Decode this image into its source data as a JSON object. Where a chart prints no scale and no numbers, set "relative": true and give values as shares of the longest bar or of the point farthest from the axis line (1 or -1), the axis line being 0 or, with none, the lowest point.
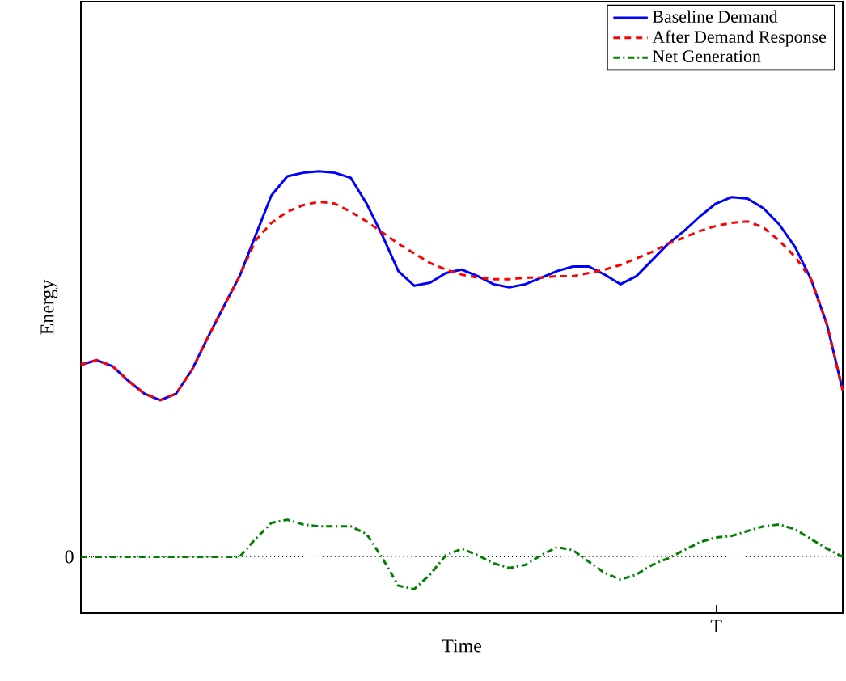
{
  "chart_data": {
    "type": "line",
    "relative": true,
    "xlabel": "Time",
    "ylabel": "Energy",
    "categories": [
      null,
      null,
      null,
      null,
      null,
      null,
      null,
      null,
      null,
      null,
      null,
      null,
      null,
      null,
      null,
      null,
      null,
      null,
      null,
      null,
      null,
      null,
      null,
      null,
      null,
      null,
      null,
      null,
      null,
      null,
      null,
      null,
      null,
      null,
      null,
      null,
      null,
      null,
      null,
      null,
      null,
      null,
      null,
      null,
      null,
      null,
      null,
      null,
      null
    ],
    "annotations": [
      "T"
    ],
    "legend": "top right",
    "ref_lines": [
      {
        "axis": "y",
        "value": 0,
        "label": "0",
        "color": "#000000",
        "line_style": "dotted"
      }
    ],
    "series": [
      {
        "name": "Baseline Demand",
        "color": "#0000ff",
        "line_style": "solid",
        "values": [
          0.498,
          0.51,
          0.494,
          0.456,
          0.423,
          0.406,
          0.423,
          0.485,
          0.569,
          0.649,
          0.728,
          0.833,
          0.937,
          0.987,
          0.996,
          1.0,
          0.996,
          0.983,
          0.916,
          0.833,
          0.741,
          0.703,
          0.711,
          0.736,
          0.745,
          0.728,
          0.707,
          0.699,
          0.707,
          0.724,
          0.741,
          0.753,
          0.753,
          0.732,
          0.707,
          0.728,
          0.77,
          0.812,
          0.845,
          0.883,
          0.916,
          0.933,
          0.929,
          0.904,
          0.862,
          0.803,
          0.72,
          0.603,
          0.431
        ]
      },
      {
        "name": "After Demand Response",
        "color": "#ff0000",
        "line_style": "dashed",
        "values": [
          0.498,
          0.51,
          0.494,
          0.456,
          0.423,
          0.406,
          0.423,
          0.485,
          0.569,
          0.649,
          0.728,
          0.82,
          0.866,
          0.895,
          0.912,
          0.921,
          0.916,
          0.895,
          0.87,
          0.841,
          0.812,
          0.787,
          0.762,
          0.745,
          0.732,
          0.724,
          0.72,
          0.72,
          0.724,
          0.724,
          0.728,
          0.728,
          0.736,
          0.745,
          0.757,
          0.774,
          0.791,
          0.812,
          0.828,
          0.845,
          0.858,
          0.866,
          0.87,
          0.854,
          0.82,
          0.778,
          0.72,
          0.603,
          0.431
        ]
      },
      {
        "name": "Net Generation",
        "color": "#008000",
        "line_style": "dashdot",
        "values": [
          0,
          0,
          0,
          0,
          0,
          0,
          0,
          0,
          0,
          0,
          0,
          0.046,
          0.088,
          0.096,
          0.084,
          0.079,
          0.079,
          0.079,
          0.059,
          -0.004,
          -0.075,
          -0.084,
          -0.046,
          0.004,
          0.021,
          0.004,
          -0.017,
          -0.029,
          -0.021,
          0.004,
          0.025,
          0.017,
          -0.013,
          -0.042,
          -0.059,
          -0.046,
          -0.021,
          -0.004,
          0.017,
          0.038,
          0.05,
          0.054,
          0.067,
          0.079,
          0.084,
          0.071,
          0.046,
          0.021,
          0
        ]
      }
    ]
  }
}
